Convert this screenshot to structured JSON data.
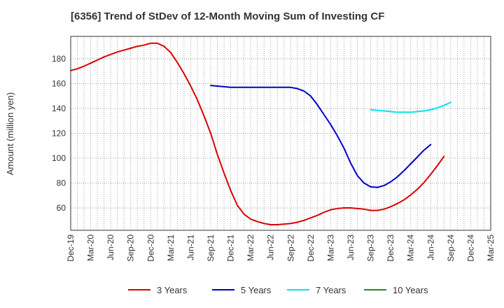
{
  "chart_data": {
    "type": "line",
    "title": "[6356]  Trend of StDev of 12-Month Moving Sum of Investing CF",
    "ylabel": "Amount (million yen)",
    "xlabel": "",
    "ylim": [
      42,
      198
    ],
    "yticks": [
      60,
      80,
      100,
      120,
      140,
      160,
      180
    ],
    "x_tick_labels": [
      "Dec-19",
      "Mar-20",
      "Jun-20",
      "Sep-20",
      "Dec-20",
      "Mar-21",
      "Jun-21",
      "Sep-21",
      "Dec-21",
      "Mar-22",
      "Jun-22",
      "Sep-22",
      "Dec-22",
      "Mar-23",
      "Jun-23",
      "Sep-23",
      "Dec-23",
      "Mar-24",
      "Jun-24",
      "Sep-24",
      "Dec-24",
      "Mar-25"
    ],
    "grid": true,
    "legend_position": "bottom",
    "series": [
      {
        "name": "3 Years",
        "color": "#dd0000",
        "start": "Dec-19",
        "values": [
          170.5,
          172,
          174,
          176.5,
          179,
          181.5,
          183.5,
          185.5,
          187,
          188.5,
          190,
          191,
          192.5,
          192.5,
          190,
          185,
          177,
          168,
          158,
          147,
          134,
          120,
          103,
          88,
          74,
          62,
          55,
          51,
          49,
          47.5,
          46.5,
          46.5,
          47,
          47.5,
          48.5,
          50,
          52,
          54,
          56.5,
          58.5,
          59.5,
          60,
          60,
          59.5,
          59,
          58,
          58,
          59,
          61,
          63.5,
          66.5,
          70.5,
          75,
          80.5,
          87,
          94,
          101.5
        ]
      },
      {
        "name": "5 Years",
        "color": "#0000cc",
        "start": "Sep-21",
        "values": [
          158.5,
          158,
          157.5,
          157,
          157,
          157,
          157,
          157,
          157,
          157,
          157,
          157,
          157,
          156,
          154,
          150,
          143,
          135,
          127,
          118,
          108,
          96,
          86,
          80,
          77,
          76.5,
          78,
          81,
          85,
          90,
          95.5,
          101,
          106.5,
          111
        ]
      },
      {
        "name": "7 Years",
        "color": "#00e5ee",
        "start": "Sep-23",
        "values": [
          139,
          138.5,
          138,
          137.5,
          137,
          137,
          137,
          137.5,
          138,
          139,
          140.5,
          142.5,
          145
        ]
      },
      {
        "name": "10 Years",
        "color": "#228b22",
        "start": "",
        "values": []
      }
    ]
  }
}
